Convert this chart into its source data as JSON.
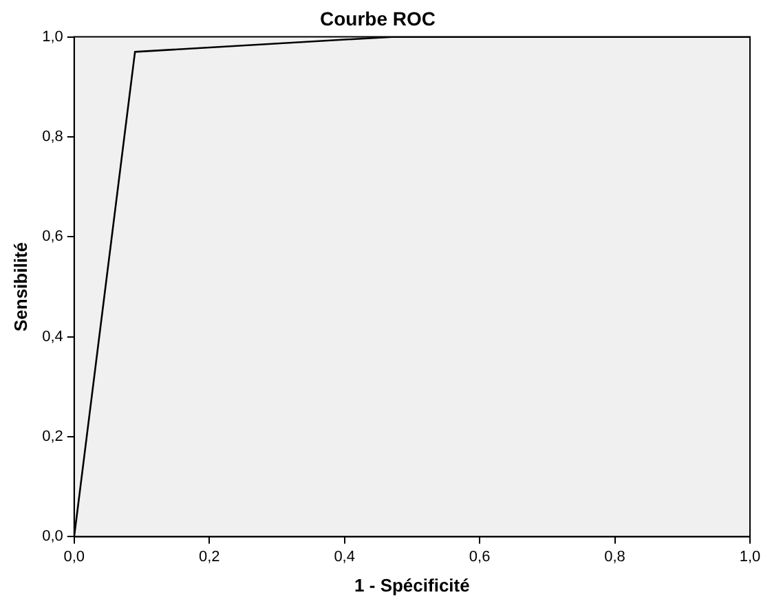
{
  "chart_data": {
    "type": "line",
    "title": "Courbe ROC",
    "xlabel": "1 - Spécificité",
    "ylabel": "Sensibilité",
    "x": [
      0,
      0.09,
      0.47,
      1
    ],
    "series": [
      {
        "color": "#000000",
        "values": [
          0,
          0.97,
          1,
          1
        ]
      }
    ],
    "xlim": [
      0,
      1
    ],
    "ylim": [
      0,
      1
    ],
    "xticks": [
      {
        "value": 0,
        "label": "0,0"
      },
      {
        "value": 0.2,
        "label": "0,2"
      },
      {
        "value": 0.4,
        "label": "0,4"
      },
      {
        "value": 0.6,
        "label": "0,6"
      },
      {
        "value": 0.8,
        "label": "0,8"
      },
      {
        "value": 1,
        "label": "1,0"
      }
    ],
    "yticks": [
      {
        "value": 0,
        "label": "0,0"
      },
      {
        "value": 0.2,
        "label": "0,2"
      },
      {
        "value": 0.4,
        "label": "0,4"
      },
      {
        "value": 0.6,
        "label": "0,6"
      },
      {
        "value": 0.8,
        "label": "0,8"
      },
      {
        "value": 1,
        "label": "1,0"
      }
    ],
    "grid": false
  }
}
